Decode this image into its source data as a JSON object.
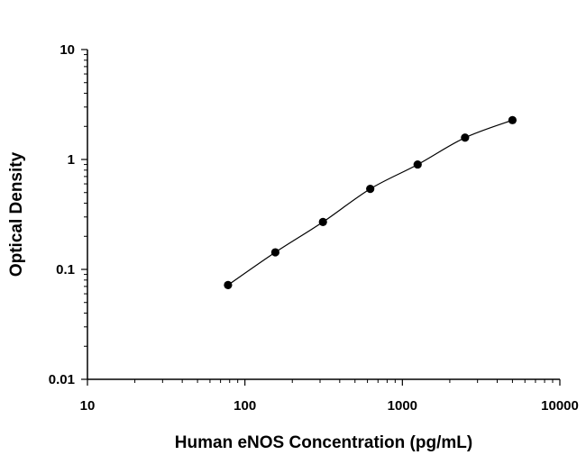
{
  "chart_data": {
    "type": "scatter",
    "title": "",
    "xlabel": "Human eNOS Concentration (pg/mL)",
    "ylabel": "Optical Density",
    "x_scale": "log",
    "y_scale": "log",
    "xlim": [
      10,
      10000
    ],
    "ylim": [
      0.01,
      10
    ],
    "x_ticks": [
      {
        "value": 10,
        "label": "10"
      },
      {
        "value": 100,
        "label": "100"
      },
      {
        "value": 1000,
        "label": "1000"
      },
      {
        "value": 10000,
        "label": "10000"
      }
    ],
    "y_ticks": [
      {
        "value": 0.01,
        "label": "0.01"
      },
      {
        "value": 0.1,
        "label": "0.1"
      },
      {
        "value": 1,
        "label": "1"
      },
      {
        "value": 10,
        "label": "10"
      }
    ],
    "grid": false,
    "legend": "none",
    "series": [
      {
        "x": [
          78.1,
          156,
          313,
          625,
          1250,
          2500,
          5000
        ],
        "y": [
          0.072,
          0.143,
          0.27,
          0.54,
          0.9,
          1.58,
          2.28
        ],
        "marker": "circle",
        "trendline": "smooth-fit"
      }
    ],
    "colors": {
      "marker": "#000000",
      "line": "#000000",
      "axis": "#000000"
    }
  }
}
